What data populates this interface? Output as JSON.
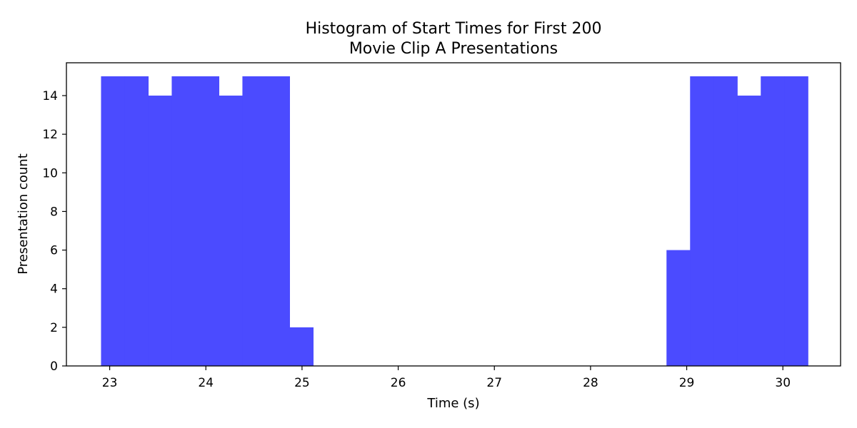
{
  "chart_data": {
    "type": "bar",
    "histogram": true,
    "title_lines": [
      "Histogram of Start Times for First 200",
      "Movie Clip A Presentations"
    ],
    "xlabel": "Time (s)",
    "ylabel": "Presentation count",
    "xlim": [
      22.55,
      30.6
    ],
    "ylim": [
      0,
      15.7
    ],
    "x_ticks": [
      23,
      24,
      25,
      26,
      27,
      28,
      29,
      30
    ],
    "y_ticks": [
      0,
      2,
      4,
      6,
      8,
      10,
      12,
      14
    ],
    "bin_edges": [
      22.91,
      23.155,
      23.4,
      23.645,
      23.89,
      24.135,
      24.38,
      24.625,
      24.87,
      25.115,
      25.36,
      25.605,
      25.85,
      26.095,
      26.34,
      26.585,
      26.83,
      27.075,
      27.32,
      27.565,
      27.81,
      28.055,
      28.3,
      28.545,
      28.79,
      29.035,
      29.28,
      29.525,
      29.77,
      30.015,
      30.26
    ],
    "counts": [
      15,
      15,
      14,
      15,
      15,
      14,
      15,
      15,
      2,
      0,
      0,
      0,
      0,
      0,
      0,
      0,
      0,
      0,
      0,
      0,
      0,
      0,
      0,
      0,
      6,
      15,
      15,
      14,
      15,
      15
    ],
    "bar_color": "#4b4bff",
    "grid": false
  }
}
